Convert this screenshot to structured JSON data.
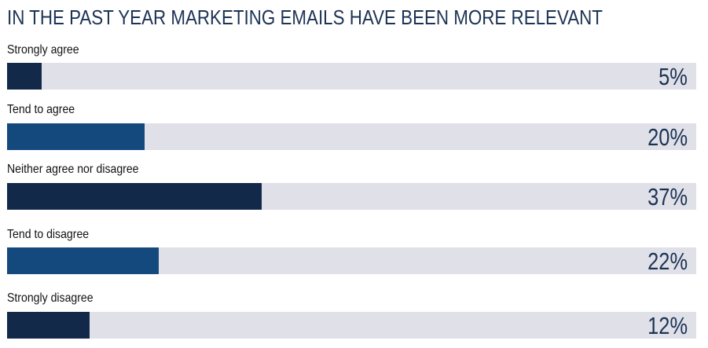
{
  "chart_data": {
    "type": "bar",
    "orientation": "horizontal",
    "title": "IN THE PAST YEAR MARKETING EMAILS HAVE BEEN MORE RELEVANT",
    "categories": [
      "Strongly agree",
      "Tend to agree",
      "Neither agree nor disagree",
      "Tend to disagree",
      "Strongly disagree"
    ],
    "values": [
      5,
      20,
      37,
      22,
      12
    ],
    "value_labels": [
      "5%",
      "20%",
      "37%",
      "22%",
      "12%"
    ],
    "unit": "%",
    "xlim": [
      0,
      100
    ],
    "xlabel": "",
    "ylabel": "",
    "grid": false,
    "legend": "none",
    "colors": {
      "title": "#1c3354",
      "track": "#dfe0e8",
      "bar_dark": "#12294a",
      "bar_mid": "#14497e",
      "label": "#111111",
      "value": "#1c3354"
    },
    "bar_color_pattern": [
      "bar_dark",
      "bar_mid",
      "bar_dark",
      "bar_mid",
      "bar_dark"
    ]
  }
}
